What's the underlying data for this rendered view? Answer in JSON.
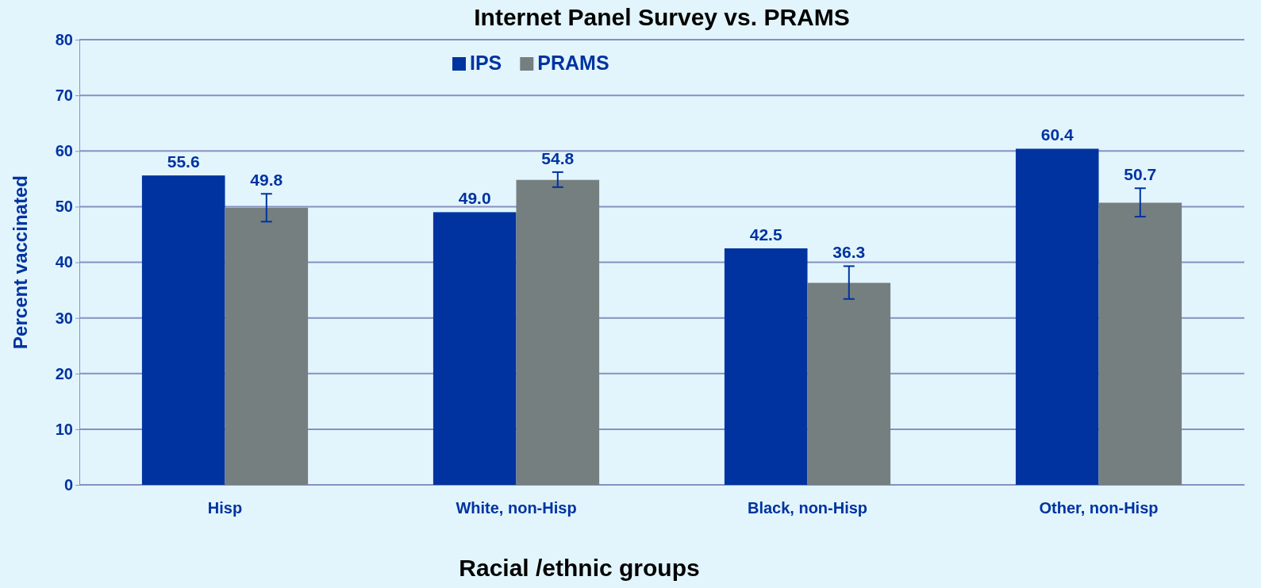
{
  "chart_data": {
    "type": "bar",
    "title": "Internet Panel Survey vs. PRAMS",
    "xlabel": "Racial /ethnic groups",
    "ylabel": "Percent vaccinated",
    "categories": [
      "Hisp",
      "White, non-Hisp",
      "Black, non-Hisp",
      "Other, non-Hisp"
    ],
    "series": [
      {
        "name": "IPS",
        "color": "#0033a0",
        "values": [
          55.6,
          49.0,
          42.5,
          60.4
        ],
        "value_labels": [
          "55.6",
          "49.0",
          "42.5",
          "60.4"
        ]
      },
      {
        "name": "PRAMS",
        "color": "#757f7f",
        "values": [
          49.8,
          54.8,
          36.3,
          50.7
        ],
        "value_labels": [
          "49.8",
          "54.8",
          "36.3",
          "50.7"
        ],
        "errors": [
          [
            47.3,
            52.3
          ],
          [
            53.5,
            56.2
          ],
          [
            33.4,
            39.3
          ],
          [
            48.2,
            53.3
          ]
        ]
      }
    ],
    "ylim": [
      0,
      80
    ],
    "yticks": [
      0,
      10,
      20,
      30,
      40,
      50,
      60,
      70,
      80
    ],
    "grid": "y",
    "legend": "top"
  }
}
